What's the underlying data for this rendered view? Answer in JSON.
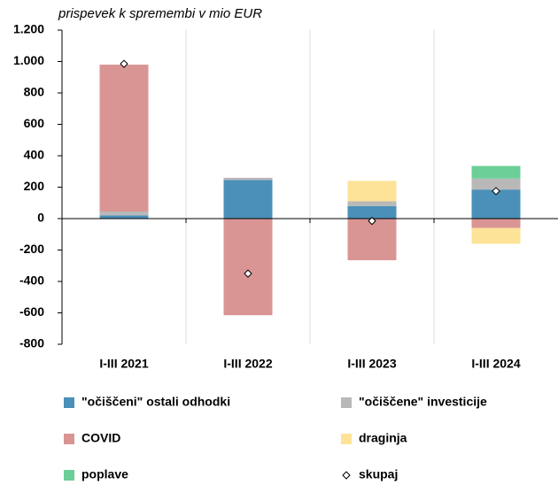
{
  "chart_data": {
    "type": "stacked_bar",
    "y_label": "prispevek k spremembi v mio EUR",
    "categories": [
      "I-III 2021",
      "I-III 2022",
      "I-III 2023",
      "I-III 2024"
    ],
    "series": [
      {
        "name": "\"očiščeni\" ostali odhodki",
        "color": "#4a90b8",
        "values": [
          20,
          245,
          80,
          185
        ]
      },
      {
        "name": "\"očiščene\" investicije",
        "color": "#b8b8b8",
        "values": [
          25,
          15,
          30,
          70
        ]
      },
      {
        "name": "COVID",
        "color": "#d99593",
        "values": [
          935,
          -615,
          -265,
          -60
        ]
      },
      {
        "name": "draginja",
        "color": "#fde398",
        "values": [
          0,
          0,
          130,
          -100
        ]
      },
      {
        "name": "poplave",
        "color": "#6ccf97",
        "values": [
          0,
          0,
          0,
          80
        ]
      },
      {
        "name": "skupaj",
        "type": "diamond",
        "color": "#ffffff",
        "values": [
          985,
          -350,
          -15,
          175
        ]
      }
    ],
    "ylim": [
      -800,
      1200
    ],
    "yticks": [
      -800,
      -600,
      -400,
      -200,
      0,
      200,
      400,
      600,
      800,
      {
        "value": 1000,
        "label": "1.000"
      },
      {
        "value": 1200,
        "label": "1.200"
      }
    ]
  }
}
